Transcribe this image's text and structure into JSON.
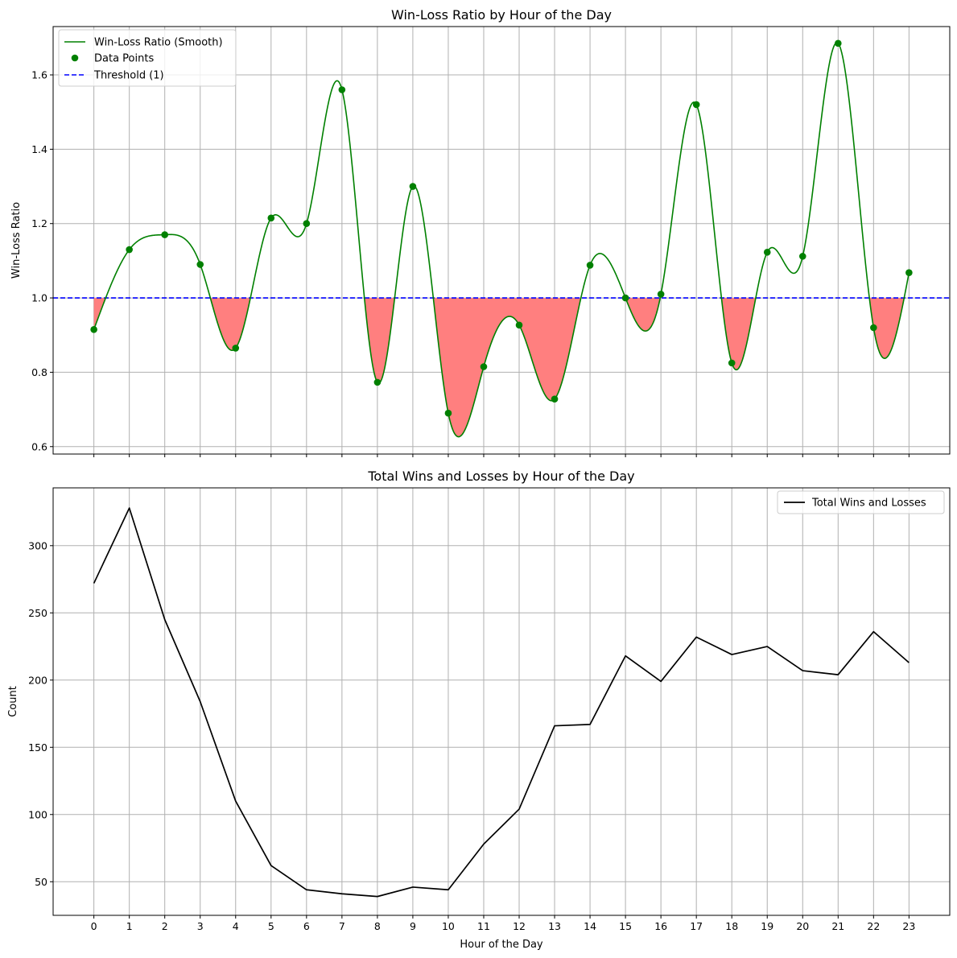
{
  "chart_data": [
    {
      "type": "line",
      "title": "Win-Loss Ratio by Hour of the Day",
      "xlabel": "",
      "ylabel": "Win-Loss Ratio",
      "x": [
        0,
        1,
        2,
        3,
        4,
        5,
        6,
        7,
        8,
        9,
        10,
        11,
        12,
        13,
        14,
        15,
        16,
        17,
        18,
        19,
        20,
        21,
        22,
        23
      ],
      "xlim": [
        -1.15,
        24.15
      ],
      "ylim": [
        0.58,
        1.73
      ],
      "yticks": [
        0.6,
        0.8,
        1.0,
        1.2,
        1.4,
        1.6
      ],
      "ytick_labels": [
        "0.6",
        "0.8",
        "1.0",
        "1.2",
        "1.4",
        "1.6"
      ],
      "grid": true,
      "legend_position": "top-left",
      "series": [
        {
          "name": "Win-Loss Ratio (Smooth)",
          "kind": "smooth-line",
          "color": "#008000"
        },
        {
          "name": "Data Points",
          "kind": "scatter",
          "color": "#008000",
          "values": [
            0.915,
            1.13,
            1.17,
            1.09,
            0.865,
            1.215,
            1.2,
            1.56,
            0.773,
            1.3,
            0.69,
            0.815,
            0.927,
            0.728,
            1.088,
            1.0,
            1.01,
            1.52,
            0.825,
            1.123,
            1.112,
            1.685,
            0.92,
            1.068
          ]
        },
        {
          "name": "Threshold (1)",
          "kind": "hline",
          "value": 1.0,
          "color": "#0000ff",
          "dash": "dashed"
        }
      ],
      "fill_below_threshold_color": "#ff7f7f"
    },
    {
      "type": "line",
      "title": "Total Wins and Losses by Hour of the Day",
      "xlabel": "Hour of the Day",
      "ylabel": "Count",
      "x": [
        0,
        1,
        2,
        3,
        4,
        5,
        6,
        7,
        8,
        9,
        10,
        11,
        12,
        13,
        14,
        15,
        16,
        17,
        18,
        19,
        20,
        21,
        22,
        23
      ],
      "xtick_labels": [
        "0",
        "1",
        "2",
        "3",
        "4",
        "5",
        "6",
        "7",
        "8",
        "9",
        "10",
        "11",
        "12",
        "13",
        "14",
        "15",
        "16",
        "17",
        "18",
        "19",
        "20",
        "21",
        "22",
        "23"
      ],
      "xlim": [
        -1.15,
        24.15
      ],
      "ylim": [
        25,
        343
      ],
      "yticks": [
        50,
        100,
        150,
        200,
        250,
        300
      ],
      "ytick_labels": [
        "50",
        "100",
        "150",
        "200",
        "250",
        "300"
      ],
      "grid": true,
      "legend_position": "top-right",
      "series": [
        {
          "name": "Total Wins and Losses",
          "color": "#000000",
          "values": [
            272,
            328,
            245,
            184,
            110,
            62,
            44,
            41,
            39,
            46,
            44,
            78,
            104,
            166,
            167,
            218,
            199,
            232,
            219,
            225,
            207,
            204,
            236,
            213
          ]
        }
      ]
    }
  ]
}
